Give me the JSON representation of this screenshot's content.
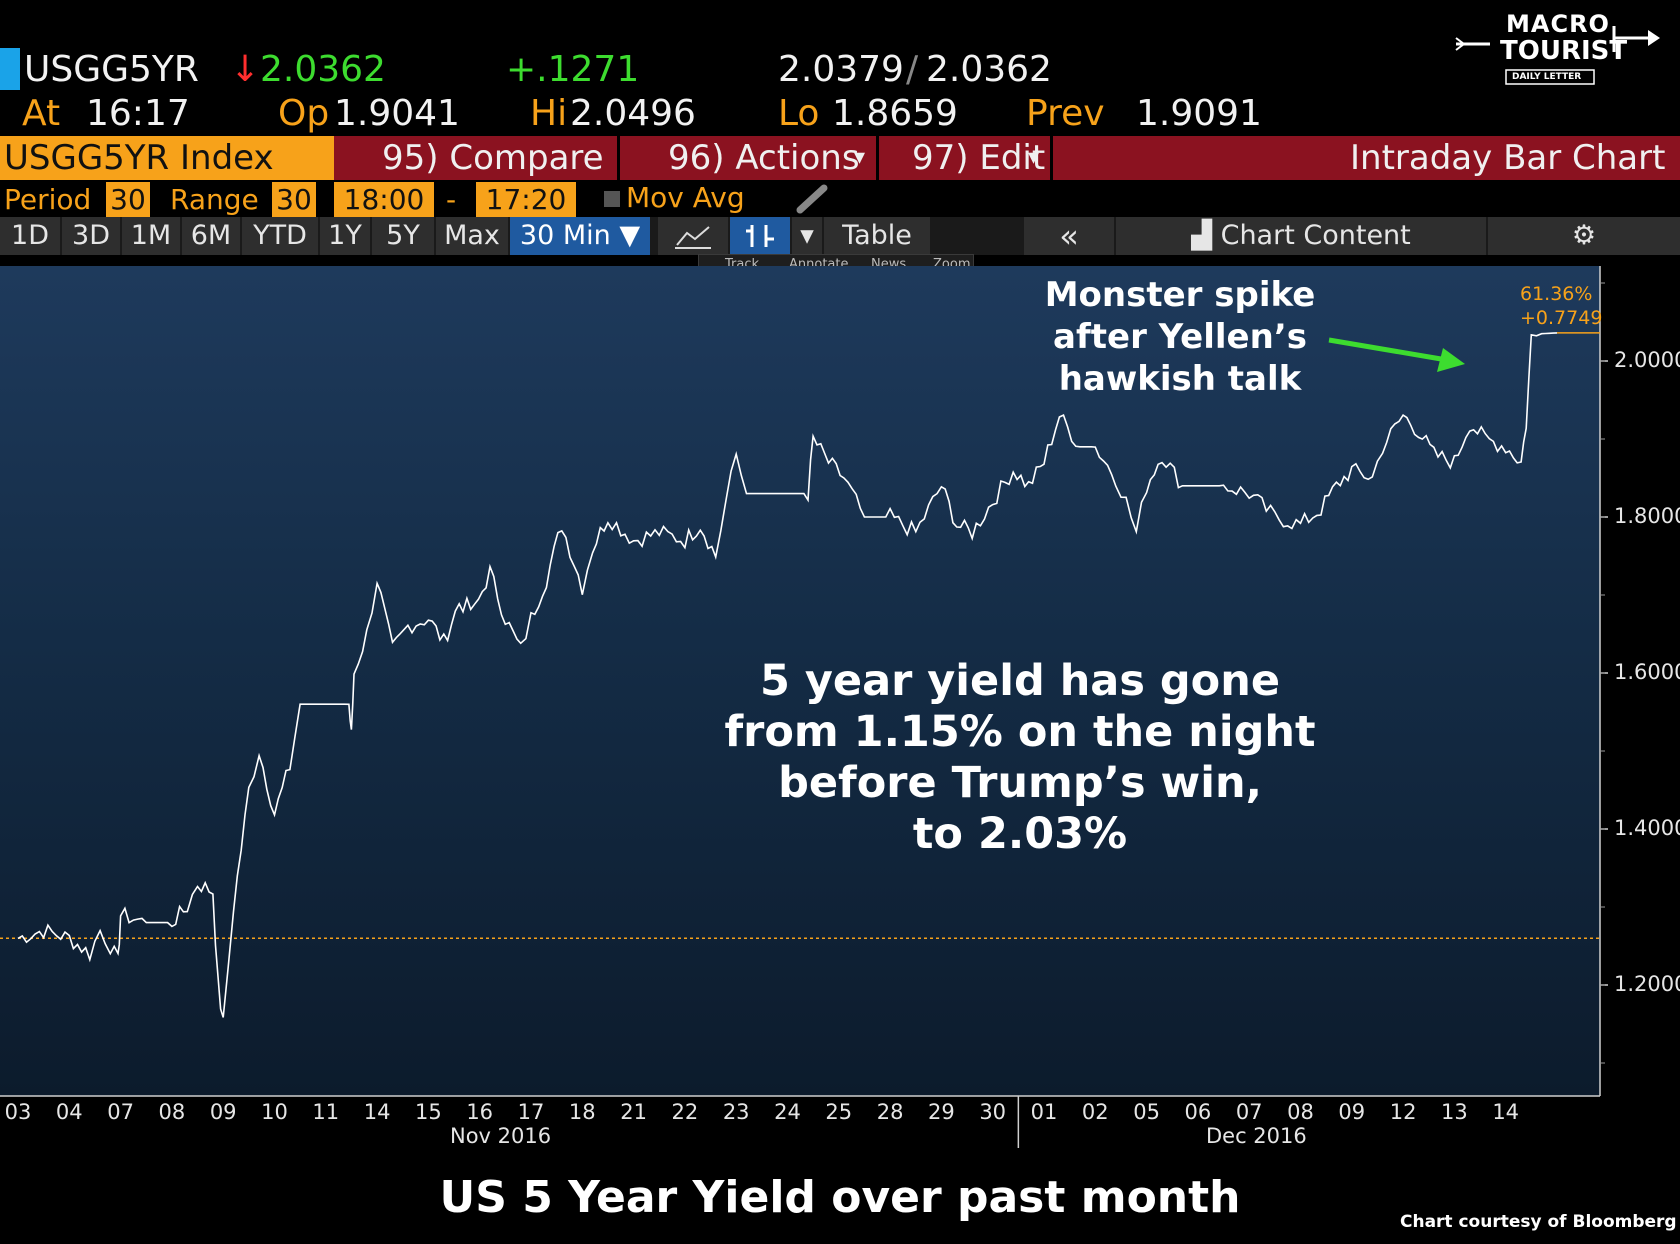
{
  "header": {
    "ticker": "USGG5YR",
    "last": "2.0362",
    "change": "+.1271",
    "bid_ask_bid": "2.0379",
    "bid_ask_sep": "/",
    "bid_ask_ask": "2.0362",
    "at_label": "At",
    "at_value": "16:17",
    "op_label": "Op",
    "op_value": "1.9041",
    "hi_label": "Hi",
    "hi_value": "2.0496",
    "lo_label": "Lo",
    "lo_value": "1.8659",
    "prev_label": "Prev",
    "prev_value": "1.9091"
  },
  "logo": {
    "line1": "MACRO",
    "line2": "TOURIST",
    "line3": "DAILY LETTER"
  },
  "menu": {
    "index": "USGG5YR Index",
    "compare": "95) Compare",
    "actions": "96) Actions",
    "actions_caret": "▾",
    "edit": "97) Edit",
    "edit_caret": "▾",
    "chart_title": "Intraday Bar Chart"
  },
  "settings": {
    "period_label": "Period",
    "period_value": "30",
    "range_label": "Range",
    "range_value": "30",
    "start_time": "18:00",
    "dash": "-",
    "end_time": "17:20",
    "mov_avg": "Mov Avg"
  },
  "tabs": [
    {
      "label": "1D"
    },
    {
      "label": "3D"
    },
    {
      "label": "1M"
    },
    {
      "label": "6M"
    },
    {
      "label": "YTD"
    },
    {
      "label": "1Y"
    },
    {
      "label": "5Y"
    },
    {
      "label": "Max"
    }
  ],
  "interval": "30 Min ▼",
  "table_label": "Table",
  "collapse": "«",
  "chart_content": "Chart Content",
  "toolbar_mini": {
    "track": "Track",
    "annotate": "Annotate",
    "news": "News",
    "zoom": "Zoom"
  },
  "price_tag": {
    "pct": "61.36%",
    "chg": "+0.7749"
  },
  "annotations": {
    "spike_line1": "Monster spike",
    "spike_line2": "after Yellen’s",
    "spike_line3": "hawkish talk",
    "summary_line1": "5 year yield has gone",
    "summary_line2": "from 1.15% on the night",
    "summary_line3": "before Trump’s win,",
    "summary_line4": "to 2.03%"
  },
  "months": {
    "nov": "Nov 2016",
    "dec": "Dec 2016"
  },
  "caption": "US 5 Year Yield over past month",
  "credit": "Chart courtesy of Bloomberg",
  "colors": {
    "line": "#ffffff",
    "prev_line": "#f7a21a",
    "arrow": "#3ddc2f",
    "plot_bg": "#1a3452",
    "menu_bar": "#8b1220",
    "accent": "#f7a21a"
  },
  "chart_data": {
    "type": "line",
    "title": "",
    "xlabel": "",
    "ylabel": "",
    "ylim": [
      1.1,
      2.1
    ],
    "y_ticks": [
      "1.2000",
      "1.4000",
      "1.6000",
      "1.8000",
      "2.0000"
    ],
    "x_ticks": [
      "03",
      "04",
      "07",
      "08",
      "09",
      "10",
      "11",
      "14",
      "15",
      "16",
      "17",
      "18",
      "21",
      "22",
      "23",
      "24",
      "25",
      "28",
      "29",
      "30",
      "01",
      "02",
      "05",
      "06",
      "07",
      "08",
      "09",
      "12",
      "13",
      "14"
    ],
    "prev_close": 1.26,
    "series": [
      {
        "values": [
          [
            0,
            1.26
          ],
          [
            0.5,
            1.27
          ],
          [
            1,
            1.26
          ],
          [
            1.4,
            1.24
          ],
          [
            1.6,
            1.27
          ],
          [
            1.8,
            1.25
          ],
          [
            1.95,
            1.23
          ],
          [
            2.0,
            1.29
          ],
          [
            2.5,
            1.28
          ],
          [
            3.0,
            1.28
          ],
          [
            3.3,
            1.3
          ],
          [
            3.5,
            1.33
          ],
          [
            3.8,
            1.32
          ],
          [
            3.9,
            1.2
          ],
          [
            4.0,
            1.15
          ],
          [
            4.2,
            1.3
          ],
          [
            4.5,
            1.45
          ],
          [
            4.7,
            1.5
          ],
          [
            5.0,
            1.42
          ],
          [
            5.3,
            1.48
          ],
          [
            5.5,
            1.56
          ],
          [
            6.0,
            1.56
          ],
          [
            6.45,
            1.56
          ],
          [
            6.5,
            1.52
          ],
          [
            6.55,
            1.6
          ],
          [
            6.8,
            1.65
          ],
          [
            7.0,
            1.72
          ],
          [
            7.3,
            1.63
          ],
          [
            7.6,
            1.66
          ],
          [
            8.0,
            1.67
          ],
          [
            8.3,
            1.64
          ],
          [
            8.6,
            1.69
          ],
          [
            8.9,
            1.68
          ],
          [
            9.2,
            1.73
          ],
          [
            9.5,
            1.67
          ],
          [
            9.8,
            1.63
          ],
          [
            10.0,
            1.67
          ],
          [
            10.3,
            1.72
          ],
          [
            10.6,
            1.79
          ],
          [
            11.0,
            1.71
          ],
          [
            11.2,
            1.76
          ],
          [
            11.5,
            1.8
          ],
          [
            12.0,
            1.77
          ],
          [
            12.5,
            1.78
          ],
          [
            13.0,
            1.77
          ],
          [
            13.3,
            1.79
          ],
          [
            13.6,
            1.75
          ],
          [
            13.8,
            1.82
          ],
          [
            14.0,
            1.88
          ],
          [
            14.2,
            1.83
          ],
          [
            14.5,
            1.83
          ],
          [
            15.0,
            1.83
          ],
          [
            15.4,
            1.83
          ],
          [
            15.5,
            1.9
          ],
          [
            15.8,
            1.87
          ],
          [
            16.1,
            1.85
          ],
          [
            16.5,
            1.8
          ],
          [
            17.0,
            1.8
          ],
          [
            17.5,
            1.78
          ],
          [
            18.0,
            1.84
          ],
          [
            18.3,
            1.79
          ],
          [
            18.6,
            1.78
          ],
          [
            19.0,
            1.82
          ],
          [
            19.4,
            1.86
          ],
          [
            19.7,
            1.84
          ],
          [
            20.0,
            1.87
          ],
          [
            20.3,
            1.93
          ],
          [
            20.7,
            1.89
          ],
          [
            21.0,
            1.89
          ],
          [
            21.4,
            1.85
          ],
          [
            21.6,
            1.82
          ],
          [
            21.8,
            1.78
          ],
          [
            22.0,
            1.84
          ],
          [
            22.3,
            1.88
          ],
          [
            22.7,
            1.84
          ],
          [
            23.0,
            1.84
          ],
          [
            23.5,
            1.84
          ],
          [
            24.0,
            1.83
          ],
          [
            24.5,
            1.8
          ],
          [
            25.0,
            1.79
          ],
          [
            25.4,
            1.81
          ],
          [
            25.7,
            1.84
          ],
          [
            26.0,
            1.86
          ],
          [
            26.4,
            1.85
          ],
          [
            26.6,
            1.89
          ],
          [
            27.0,
            1.93
          ],
          [
            27.3,
            1.91
          ],
          [
            27.6,
            1.88
          ],
          [
            28.0,
            1.87
          ],
          [
            28.3,
            1.92
          ],
          [
            28.6,
            1.9
          ],
          [
            29.0,
            1.89
          ],
          [
            29.3,
            1.87
          ],
          [
            29.4,
            1.92
          ],
          [
            29.5,
            2.03
          ],
          [
            29.7,
            2.035
          ],
          [
            30.0,
            2.036
          ]
        ]
      }
    ]
  }
}
